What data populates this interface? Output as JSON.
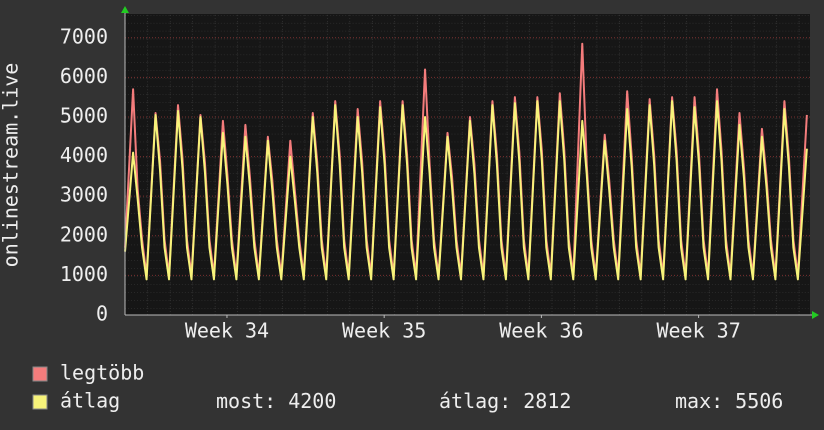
{
  "chart_data": {
    "type": "line",
    "y_label": "onlinestream.live",
    "x": [
      0,
      0.36,
      0.56,
      0.76,
      0.96,
      1.36,
      1.56,
      1.76,
      1.96,
      2.36,
      2.56,
      2.76,
      2.96,
      3.36,
      3.56,
      3.76,
      3.96,
      4.36,
      4.56,
      4.76,
      4.96,
      5.36,
      5.56,
      5.76,
      5.96,
      6.36,
      6.56,
      6.76,
      6.96,
      7.36,
      7.56,
      7.76,
      7.96,
      8.36,
      8.56,
      8.76,
      8.96,
      9.36,
      9.56,
      9.76,
      9.96,
      10.36,
      10.56,
      10.76,
      10.96,
      11.36,
      11.56,
      11.76,
      11.96,
      12.36,
      12.56,
      12.76,
      12.96,
      13.36,
      13.56,
      13.76,
      13.96,
      14.36,
      14.56,
      14.76,
      14.96,
      15.36,
      15.56,
      15.76,
      15.96,
      16.36,
      16.56,
      16.76,
      16.96,
      17.36,
      17.56,
      17.76,
      17.96,
      18.36,
      18.56,
      18.76,
      18.96,
      19.36,
      19.56,
      19.76,
      19.96,
      20.36,
      20.56,
      20.76,
      20.96,
      21.36,
      21.56,
      21.76,
      21.96,
      22.36,
      22.56,
      22.76,
      22.96,
      23.36,
      23.56,
      23.76,
      23.96,
      24.36,
      24.56,
      24.76,
      24.96,
      25.36,
      25.56,
      25.76,
      25.96,
      26.36,
      26.56,
      26.76,
      26.96,
      27.36,
      27.56,
      27.76,
      27.96,
      28.36,
      28.56,
      28.76,
      28.96,
      29.36,
      29.56,
      29.76,
      29.96,
      30.36
    ],
    "series": [
      {
        "name": "legtöbb",
        "color": "#f47c7c",
        "values": [
          1700,
          5700,
          3200,
          1900,
          1000,
          5100,
          3900,
          1900,
          1000,
          5300,
          3950,
          1900,
          1000,
          5050,
          3850,
          1900,
          1000,
          4900,
          3550,
          1900,
          1000,
          4800,
          3500,
          1900,
          1000,
          4500,
          3400,
          1900,
          1000,
          4400,
          3150,
          1900,
          1000,
          5100,
          3850,
          1900,
          1000,
          5400,
          4050,
          1900,
          1000,
          5200,
          3850,
          1900,
          1000,
          5400,
          4050,
          1900,
          1000,
          5400,
          4050,
          1900,
          1000,
          6200,
          3850,
          1900,
          1000,
          4600,
          3500,
          1900,
          1000,
          5000,
          3800,
          1900,
          1000,
          5400,
          4050,
          1900,
          1000,
          5500,
          4100,
          1900,
          1000,
          5500,
          4150,
          1900,
          1000,
          5600,
          4150,
          1900,
          1000,
          6850,
          3800,
          1900,
          1000,
          4550,
          3400,
          1900,
          1000,
          5650,
          4000,
          1900,
          1000,
          5450,
          4050,
          1900,
          1000,
          5500,
          4150,
          1900,
          1000,
          5500,
          4050,
          1900,
          1000,
          5700,
          4150,
          1900,
          1000,
          5100,
          3700,
          1900,
          1000,
          4700,
          3500,
          1900,
          1000,
          5400,
          4000,
          1900,
          1000,
          5050
        ]
      },
      {
        "name": "átlag",
        "color": "#f7f37a",
        "values": [
          1600,
          4100,
          2950,
          1700,
          900,
          5050,
          3650,
          1700,
          900,
          5150,
          3700,
          1700,
          900,
          5000,
          3600,
          1700,
          900,
          4600,
          3300,
          1700,
          900,
          4500,
          3250,
          1700,
          900,
          4400,
          3150,
          1700,
          900,
          4000,
          2900,
          1700,
          900,
          5000,
          3600,
          1700,
          900,
          5300,
          3800,
          1700,
          900,
          5000,
          3600,
          1700,
          900,
          5250,
          3800,
          1700,
          900,
          5300,
          3800,
          1700,
          900,
          5000,
          3600,
          1700,
          900,
          4500,
          3250,
          1700,
          900,
          4900,
          3550,
          1700,
          900,
          5300,
          3800,
          1700,
          900,
          5350,
          3850,
          1700,
          900,
          5400,
          3900,
          1700,
          900,
          5400,
          3900,
          1700,
          900,
          4900,
          3550,
          1700,
          900,
          4400,
          3150,
          1700,
          900,
          5200,
          3750,
          1700,
          900,
          5300,
          3800,
          1700,
          900,
          5400,
          3900,
          1700,
          900,
          5250,
          3800,
          1700,
          900,
          5400,
          3900,
          1700,
          900,
          4800,
          3450,
          1700,
          900,
          4500,
          3250,
          1700,
          900,
          5200,
          3750,
          1700,
          900,
          4200
        ]
      }
    ],
    "xlim": [
      0,
      30.5
    ],
    "xticks": [
      {
        "value": 4.54,
        "label": "Week 34"
      },
      {
        "value": 11.54,
        "label": "Week 35"
      },
      {
        "value": 18.54,
        "label": "Week 36"
      },
      {
        "value": 25.54,
        "label": "Week 37"
      }
    ],
    "ylim": [
      0,
      7600
    ],
    "yticks": [
      0,
      1000,
      2000,
      3000,
      4000,
      5000,
      6000,
      7000
    ],
    "grid": true,
    "stats": [
      {
        "label": "most:",
        "value": 4200
      },
      {
        "label": "átlag:",
        "value": 2812
      },
      {
        "label": "max:",
        "value": 5506
      }
    ]
  }
}
